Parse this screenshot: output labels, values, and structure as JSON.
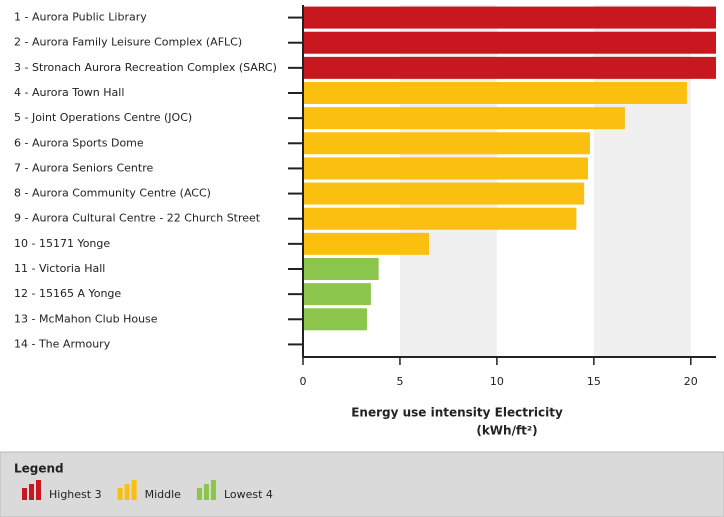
{
  "chart_data": {
    "type": "hbar",
    "categories": [
      "1 - Aurora Public Library",
      "2 - Aurora Family Leisure Complex (AFLC)",
      "3 - Stronach Aurora Recreation Complex (SARC)",
      "4 - Aurora Town Hall",
      "5 - Joint Operations Centre (JOC)",
      "6 - Aurora Sports Dome",
      "7 - Aurora Seniors Centre",
      "8 - Aurora Community Centre (ACC)",
      "9 - Aurora Cultural Centre -  22 Church Street",
      "10 - 15171 Yonge",
      "11 - Victoria Hall",
      "12 - 15165 A Yonge",
      "13 - McMahon Club House",
      "14 - The Armoury"
    ],
    "series": [
      {
        "name": "Highest 3",
        "color": "#c8171e",
        "values": [
          21.3,
          21.3,
          21.3,
          null,
          null,
          null,
          null,
          null,
          null,
          null,
          null,
          null,
          null,
          null
        ]
      },
      {
        "name": "Middle",
        "color": "#fbbf0f",
        "values": [
          null,
          null,
          null,
          19.8,
          16.6,
          14.8,
          14.7,
          14.5,
          14.1,
          6.5,
          null,
          null,
          null,
          null
        ]
      },
      {
        "name": "Lowest 4",
        "color": "#8cc54c",
        "values": [
          null,
          null,
          null,
          null,
          null,
          null,
          null,
          null,
          null,
          null,
          3.9,
          3.5,
          3.3,
          null
        ]
      }
    ],
    "xlim": [
      0,
      21.3
    ],
    "xticks": [
      0,
      5,
      10,
      15,
      20
    ],
    "xlabel": [
      "Energy use intensity Electricity",
      "(kWh/ft²)"
    ],
    "legend_title": "Legend"
  }
}
